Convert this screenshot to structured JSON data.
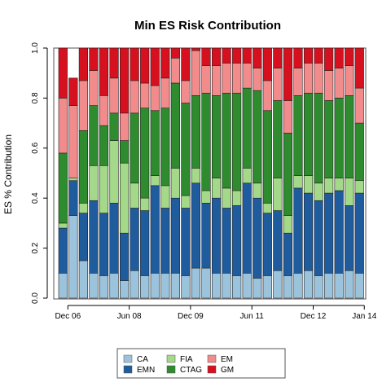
{
  "chart_data": {
    "type": "bar",
    "stacked": true,
    "title": "Min ES Risk Contribution",
    "xlabel": "",
    "ylabel": "ES % Contribution",
    "ylim": [
      0,
      1
    ],
    "y_ticks": [
      "0.0",
      "0.2",
      "0.4",
      "0.6",
      "0.8",
      "1.0"
    ],
    "x_tick_labels": [
      {
        "label": "Dec 06",
        "bar_index": 0
      },
      {
        "label": "Jun 08",
        "bar_index": 6
      },
      {
        "label": "Dec 09",
        "bar_index": 12
      },
      {
        "label": "Jun 11",
        "bar_index": 18
      },
      {
        "label": "Dec 12",
        "bar_index": 24
      },
      {
        "label": "Jan 14",
        "bar_index": 29
      }
    ],
    "grid": false,
    "legend_position": "bottom",
    "categories": [
      "",
      "",
      "",
      "",
      "",
      "",
      "",
      "",
      "",
      "",
      "",
      "",
      "",
      "",
      "",
      "",
      "",
      "",
      "",
      "",
      "",
      "",
      "",
      "",
      "",
      "",
      "",
      "",
      "",
      ""
    ],
    "series": [
      {
        "name": "CA",
        "color": "#9CC3DC",
        "values": [
          0.1,
          0.33,
          0.15,
          0.1,
          0.09,
          0.1,
          0.07,
          0.11,
          0.09,
          0.1,
          0.1,
          0.1,
          0.09,
          0.12,
          0.12,
          0.1,
          0.1,
          0.09,
          0.1,
          0.08,
          0.09,
          0.11,
          0.09,
          0.1,
          0.11,
          0.09,
          0.1,
          0.1,
          0.11,
          0.1
        ]
      },
      {
        "name": "EMN",
        "color": "#1F5C9E",
        "values": [
          0.18,
          0.14,
          0.19,
          0.29,
          0.25,
          0.28,
          0.19,
          0.25,
          0.26,
          0.35,
          0.26,
          0.3,
          0.27,
          0.34,
          0.26,
          0.3,
          0.26,
          0.28,
          0.36,
          0.32,
          0.25,
          0.24,
          0.17,
          0.34,
          0.31,
          0.3,
          0.32,
          0.33,
          0.26,
          0.32
        ]
      },
      {
        "name": "FIA",
        "color": "#A4D98A",
        "values": [
          0.02,
          0.01,
          0.04,
          0.14,
          0.19,
          0.25,
          0.28,
          0.1,
          0.05,
          0.04,
          0.09,
          0.12,
          0.05,
          0.06,
          0.05,
          0.08,
          0.08,
          0.06,
          0.06,
          0.06,
          0.04,
          0.13,
          0.07,
          0.05,
          0.07,
          0.07,
          0.06,
          0.05,
          0.11,
          0.05
        ]
      },
      {
        "name": "CTAG",
        "color": "#2E8B2E",
        "values": [
          0.28,
          0.0,
          0.29,
          0.24,
          0.16,
          0.11,
          0.09,
          0.28,
          0.36,
          0.26,
          0.31,
          0.34,
          0.37,
          0.29,
          0.39,
          0.33,
          0.38,
          0.39,
          0.32,
          0.37,
          0.37,
          0.31,
          0.33,
          0.32,
          0.33,
          0.36,
          0.31,
          0.32,
          0.33,
          0.23
        ]
      },
      {
        "name": "EM",
        "color": "#F28B8B",
        "values": [
          0.22,
          0.29,
          0.2,
          0.14,
          0.12,
          0.14,
          0.11,
          0.13,
          0.1,
          0.1,
          0.12,
          0.1,
          0.09,
          0.18,
          0.11,
          0.12,
          0.12,
          0.12,
          0.1,
          0.09,
          0.12,
          0.13,
          0.13,
          0.11,
          0.12,
          0.12,
          0.12,
          0.12,
          0.12,
          0.14
        ]
      },
      {
        "name": "GM",
        "color": "#D7101F",
        "values": [
          0.2,
          0.11,
          0.13,
          0.09,
          0.19,
          0.12,
          0.26,
          0.13,
          0.14,
          0.15,
          0.12,
          0.04,
          0.13,
          0.01,
          0.07,
          0.07,
          0.06,
          0.06,
          0.06,
          0.08,
          0.13,
          0.08,
          0.21,
          0.08,
          0.06,
          0.06,
          0.09,
          0.08,
          0.07,
          0.16
        ]
      }
    ]
  },
  "legend": {
    "items": [
      "CA",
      "EMN",
      "FIA",
      "CTAG",
      "EM",
      "GM"
    ]
  }
}
